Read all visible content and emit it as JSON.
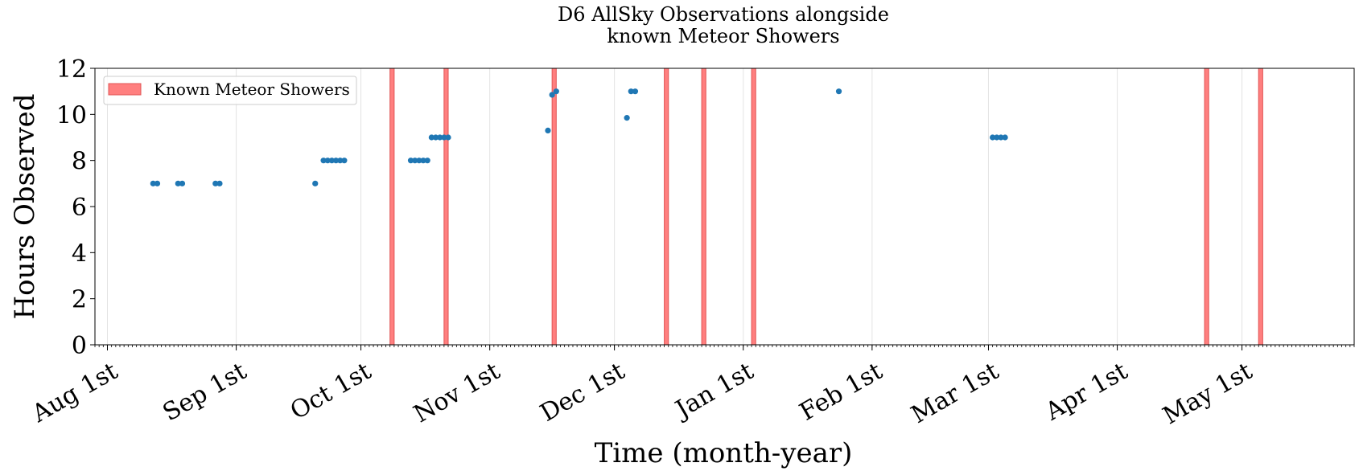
{
  "chart_data": {
    "type": "scatter",
    "title_line1": "D6 AllSky Observations alongside",
    "title_line2": "known Meteor Showers",
    "xlabel": "Time (month-year)",
    "ylabel": "Hours Observed",
    "ylim": [
      0,
      12
    ],
    "yticks": [
      0,
      2,
      4,
      6,
      8,
      10,
      12
    ],
    "xlim": [
      "2022-07-29",
      "2023-05-28"
    ],
    "xticks": [
      {
        "date": "2022-08-01",
        "label": "Aug 1st"
      },
      {
        "date": "2022-09-01",
        "label": "Sep 1st"
      },
      {
        "date": "2022-10-01",
        "label": "Oct 1st"
      },
      {
        "date": "2022-11-01",
        "label": "Nov 1st"
      },
      {
        "date": "2022-12-01",
        "label": "Dec 1st"
      },
      {
        "date": "2023-01-01",
        "label": "Jan 1st"
      },
      {
        "date": "2023-02-01",
        "label": "Feb 1st"
      },
      {
        "date": "2023-03-01",
        "label": "Mar 1st"
      },
      {
        "date": "2023-04-01",
        "label": "Apr 1st"
      },
      {
        "date": "2023-05-01",
        "label": "May 1st"
      }
    ],
    "grid": true,
    "legend_position": "top-left",
    "series": [
      {
        "color": "#1f77b4",
        "points": [
          {
            "x": "2022-08-12",
            "y": 7
          },
          {
            "x": "2022-08-13",
            "y": 7
          },
          {
            "x": "2022-08-18",
            "y": 7
          },
          {
            "x": "2022-08-19",
            "y": 7
          },
          {
            "x": "2022-08-27",
            "y": 7
          },
          {
            "x": "2022-08-28",
            "y": 7
          },
          {
            "x": "2022-09-20",
            "y": 7
          },
          {
            "x": "2022-09-22",
            "y": 8
          },
          {
            "x": "2022-09-23",
            "y": 8
          },
          {
            "x": "2022-09-24",
            "y": 8
          },
          {
            "x": "2022-09-25",
            "y": 8
          },
          {
            "x": "2022-09-26",
            "y": 8
          },
          {
            "x": "2022-09-27",
            "y": 8
          },
          {
            "x": "2022-10-13",
            "y": 8
          },
          {
            "x": "2022-10-14",
            "y": 8
          },
          {
            "x": "2022-10-15",
            "y": 8
          },
          {
            "x": "2022-10-16",
            "y": 8
          },
          {
            "x": "2022-10-17",
            "y": 8
          },
          {
            "x": "2022-10-18",
            "y": 9
          },
          {
            "x": "2022-10-19",
            "y": 9
          },
          {
            "x": "2022-10-20",
            "y": 9
          },
          {
            "x": "2022-10-21",
            "y": 9
          },
          {
            "x": "2022-10-22",
            "y": 9
          },
          {
            "x": "2022-11-15",
            "y": 9.3
          },
          {
            "x": "2022-11-16",
            "y": 10.85
          },
          {
            "x": "2022-11-17",
            "y": 11
          },
          {
            "x": "2022-12-04",
            "y": 9.85
          },
          {
            "x": "2022-12-05",
            "y": 11
          },
          {
            "x": "2022-12-06",
            "y": 11
          },
          {
            "x": "2023-01-24",
            "y": 11
          },
          {
            "x": "2023-03-02",
            "y": 9
          },
          {
            "x": "2023-03-03",
            "y": 9
          },
          {
            "x": "2023-03-04",
            "y": 9
          },
          {
            "x": "2023-03-05",
            "y": 9
          }
        ]
      }
    ],
    "showers": {
      "label": "Known Meteor Showers",
      "color": "#ff7f7f",
      "edge_color": "#e05555",
      "spans": [
        {
          "start": "2022-10-08",
          "end": "2022-10-09"
        },
        {
          "start": "2022-10-21",
          "end": "2022-10-22"
        },
        {
          "start": "2022-11-16",
          "end": "2022-11-17"
        },
        {
          "start": "2022-12-13",
          "end": "2022-12-14"
        },
        {
          "start": "2022-12-22",
          "end": "2022-12-23"
        },
        {
          "start": "2023-01-03",
          "end": "2023-01-04"
        },
        {
          "start": "2023-04-22",
          "end": "2023-04-23"
        },
        {
          "start": "2023-05-05",
          "end": "2023-05-06"
        }
      ]
    }
  }
}
